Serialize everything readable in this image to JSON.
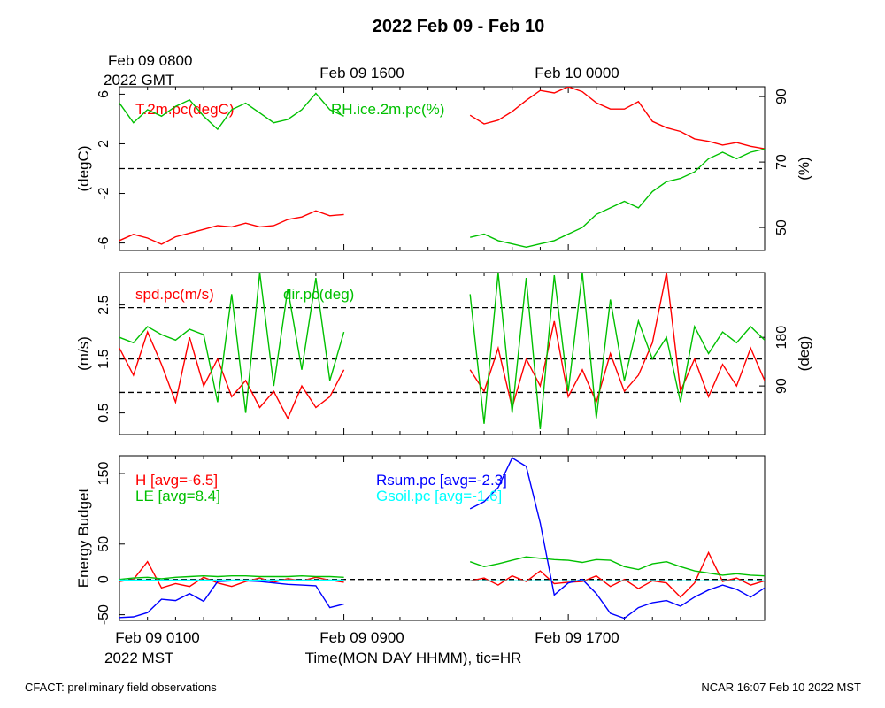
{
  "header": {
    "title": "2022 Feb 09 - Feb 10",
    "gmt_date": "Feb 09 0800",
    "gmt_label": "2022 GMT",
    "gmt_ticks": [
      "Feb 09 1600",
      "Feb 10 0000"
    ],
    "mst_ticks": [
      "Feb 09 0100",
      "Feb 09 0900",
      "Feb 09 1700"
    ],
    "mst_label": "2022 MST",
    "xlabel": "Time(MON DAY HHMM), tic=HR"
  },
  "footer": {
    "left": "CFACT: preliminary field observations",
    "right": "NCAR 16:07 Feb 10 2022 MST"
  },
  "colors": {
    "red": "#ff0000",
    "green": "#00c000",
    "blue": "#0000ff",
    "cyan": "#00ffff"
  },
  "chart_data": [
    {
      "type": "line",
      "x_unit": "hours since Feb 09 0000 MST",
      "xlim": [
        1,
        24
      ],
      "left_axis": {
        "label": "(degC)",
        "ticks": [
          "-6",
          "-2",
          "2",
          "6"
        ],
        "ylim": [
          -6.6,
          6.6
        ]
      },
      "right_axis": {
        "label": "(%)",
        "ticks": [
          "50",
          "70",
          "90"
        ],
        "ylim": [
          43,
          93
        ]
      },
      "reference_lines": [
        0
      ],
      "series": [
        {
          "name": "T.2m.pc(degC)",
          "axis": "left",
          "color": "red",
          "segments": [
            {
              "x": [
                1.0,
                1.5,
                2.0,
                2.5,
                3.0,
                3.5,
                4.0,
                4.5,
                5.0,
                5.5,
                6.0,
                6.5,
                7.0,
                7.5,
                8.0,
                8.5,
                9.0
              ],
              "y": [
                -5.8,
                -5.3,
                -5.6,
                -6.1,
                -5.5,
                -5.2,
                -4.9,
                -4.6,
                -4.7,
                -4.4,
                -4.7,
                -4.6,
                -4.1,
                -3.9,
                -3.4,
                -3.8,
                -3.7
              ]
            },
            {
              "x": [
                13.5,
                14.0,
                14.5,
                15.0,
                15.5,
                16.0,
                16.5,
                17.0,
                17.5,
                18.0,
                18.5,
                19.0,
                19.5,
                20.0,
                20.5,
                21.0,
                21.5,
                22.0,
                22.5,
                23.0,
                23.5,
                24.0
              ],
              "y": [
                4.3,
                3.6,
                3.9,
                4.6,
                5.5,
                6.3,
                6.1,
                6.6,
                6.2,
                5.3,
                4.8,
                4.8,
                5.4,
                3.8,
                3.3,
                3.0,
                2.4,
                2.2,
                1.9,
                2.1,
                1.8,
                1.6
              ]
            }
          ]
        },
        {
          "name": "RH.ice.2m.pc(%)",
          "axis": "right",
          "color": "green",
          "segments": [
            {
              "x": [
                1.0,
                1.5,
                2.0,
                2.5,
                3.0,
                3.5,
                4.0,
                4.5,
                5.0,
                5.5,
                6.0,
                6.5,
                7.0,
                7.5,
                8.0,
                8.5,
                9.0
              ],
              "y": [
                88,
                82,
                86,
                84,
                87,
                89,
                84,
                80,
                86,
                88,
                85,
                82,
                83,
                86,
                91,
                86,
                84
              ]
            },
            {
              "x": [
                13.5,
                14.0,
                14.5,
                15.0,
                15.5,
                16.0,
                16.5,
                17.0,
                17.5,
                18.0,
                18.5,
                19.0,
                19.5,
                20.0,
                20.5,
                21.0,
                21.5,
                22.0,
                22.5,
                23.0,
                23.5,
                24.0
              ],
              "y": [
                47,
                48,
                46,
                45,
                44,
                45,
                46,
                48,
                50,
                54,
                56,
                58,
                56,
                61,
                64,
                65,
                67,
                71,
                73,
                71,
                73,
                74
              ]
            }
          ]
        }
      ]
    },
    {
      "type": "line",
      "x_unit": "hours since Feb 09 0000 MST",
      "xlim": [
        1,
        24
      ],
      "left_axis": {
        "label": "(m/s)",
        "ticks": [
          "0.5",
          "1.5",
          "2.5"
        ],
        "ylim": [
          0.1,
          3.1
        ]
      },
      "right_axis": {
        "label": "(deg)",
        "ticks": [
          "90",
          "180"
        ],
        "ylim": [
          0,
          300
        ]
      },
      "reference_lines": [
        0.88,
        1.5,
        2.45
      ],
      "series": [
        {
          "name": "spd.pc(m/s)",
          "axis": "left",
          "color": "red",
          "segments": [
            {
              "x": [
                1.0,
                1.5,
                2.0,
                2.5,
                3.0,
                3.5,
                4.0,
                4.5,
                5.0,
                5.5,
                6.0,
                6.5,
                7.0,
                7.5,
                8.0,
                8.5,
                9.0
              ],
              "y": [
                1.7,
                1.2,
                2.0,
                1.4,
                0.7,
                1.9,
                1.0,
                1.5,
                0.8,
                1.1,
                0.6,
                0.9,
                0.4,
                1.0,
                0.6,
                0.8,
                1.3
              ]
            },
            {
              "x": [
                13.5,
                14.0,
                14.5,
                15.0,
                15.5,
                16.0,
                16.5,
                17.0,
                17.5,
                18.0,
                18.5,
                19.0,
                19.5,
                20.0,
                20.5,
                21.0,
                21.5,
                22.0,
                22.5,
                23.0,
                23.5,
                24.0
              ],
              "y": [
                1.3,
                0.9,
                1.7,
                0.6,
                1.5,
                1.0,
                2.2,
                0.8,
                1.3,
                0.7,
                1.6,
                0.9,
                1.2,
                1.8,
                3.1,
                0.9,
                1.5,
                0.8,
                1.4,
                1.0,
                1.7,
                1.1
              ]
            }
          ]
        },
        {
          "name": "dir.pc(deg)",
          "axis": "right",
          "color": "green",
          "segments": [
            {
              "x": [
                1.0,
                1.5,
                2.0,
                2.5,
                3.0,
                3.5,
                4.0,
                4.5,
                5.0,
                5.5,
                6.0,
                6.5,
                7.0,
                7.5,
                8.0,
                8.5,
                9.0
              ],
              "y": [
                180,
                170,
                200,
                185,
                175,
                195,
                185,
                60,
                260,
                40,
                300,
                90,
                270,
                120,
                290,
                100,
                190
              ]
            },
            {
              "x": [
                13.5,
                14.0,
                14.5,
                15.0,
                15.5,
                16.0,
                16.5,
                17.0,
                17.5,
                18.0,
                18.5,
                19.0,
                19.5,
                20.0,
                20.5,
                21.0,
                21.5,
                22.0,
                22.5,
                23.0,
                23.5,
                24.0
              ],
              "y": [
                260,
                20,
                300,
                40,
                290,
                10,
                295,
                80,
                300,
                30,
                250,
                100,
                210,
                140,
                180,
                60,
                200,
                150,
                190,
                170,
                200,
                175
              ]
            }
          ]
        }
      ]
    },
    {
      "type": "line",
      "x_unit": "hours since Feb 09 0000 MST",
      "xlim": [
        1,
        24
      ],
      "left_axis": {
        "label": "Energy Budget",
        "ticks": [
          "-50",
          "0",
          "50",
          "150"
        ],
        "ylim": [
          -58,
          175
        ]
      },
      "reference_lines": [
        0
      ],
      "series": [
        {
          "name": "H [avg=-6.5]",
          "color": "red",
          "segments": [
            {
              "x": [
                1.0,
                1.5,
                2.0,
                2.5,
                3.0,
                3.5,
                4.0,
                4.5,
                5.0,
                5.5,
                6.0,
                6.5,
                7.0,
                7.5,
                8.0,
                8.5,
                9.0
              ],
              "y": [
                -3,
                0,
                25,
                -12,
                -6,
                -10,
                3,
                -5,
                -10,
                -3,
                2,
                -4,
                1,
                -2,
                3,
                -1,
                -4
              ]
            },
            {
              "x": [
                13.5,
                14.0,
                14.5,
                15.0,
                15.5,
                16.0,
                16.5,
                17.0,
                17.5,
                18.0,
                18.5,
                19.0,
                19.5,
                20.0,
                20.5,
                21.0,
                21.5,
                22.0,
                22.5,
                23.0,
                23.5,
                24.0
              ],
              "y": [
                -2,
                2,
                -8,
                5,
                -3,
                12,
                -6,
                -4,
                -3,
                5,
                -10,
                0,
                -13,
                -2,
                -5,
                -25,
                -5,
                38,
                -3,
                2,
                -8,
                -2
              ]
            }
          ]
        },
        {
          "name": "LE [avg=8.4]",
          "color": "green",
          "segments": [
            {
              "x": [
                1.0,
                1.5,
                2.0,
                2.5,
                3.0,
                3.5,
                4.0,
                4.5,
                5.0,
                5.5,
                6.0,
                6.5,
                7.0,
                7.5,
                8.0,
                8.5,
                9.0
              ],
              "y": [
                0,
                2,
                3,
                1,
                3,
                4,
                5,
                4,
                5,
                5,
                4,
                4,
                4,
                5,
                4,
                4,
                3
              ]
            },
            {
              "x": [
                13.5,
                14.0,
                14.5,
                15.0,
                15.5,
                16.0,
                16.5,
                17.0,
                17.5,
                18.0,
                18.5,
                19.0,
                19.5,
                20.0,
                20.5,
                21.0,
                21.5,
                22.0,
                22.5,
                23.0,
                23.5,
                24.0
              ],
              "y": [
                25,
                18,
                22,
                27,
                32,
                30,
                28,
                27,
                24,
                28,
                27,
                18,
                14,
                22,
                25,
                18,
                12,
                9,
                6,
                8,
                6,
                5
              ]
            }
          ]
        },
        {
          "name": "Rsum.pc [avg=-2.3]",
          "color": "blue",
          "segments": [
            {
              "x": [
                1.0,
                1.5,
                2.0,
                2.5,
                3.0,
                3.5,
                4.0,
                4.5,
                5.0,
                5.5,
                6.0,
                6.5,
                7.0,
                7.5,
                8.0,
                8.5,
                9.0
              ],
              "y": [
                -54,
                -53,
                -47,
                -28,
                -30,
                -20,
                -31,
                -3,
                -2,
                -2,
                -3,
                -5,
                -7,
                -8,
                -9,
                -40,
                -35
              ]
            },
            {
              "x": [
                13.5,
                14.0,
                14.5,
                15.0,
                15.5,
                16.0,
                16.5,
                17.0,
                17.5,
                18.0,
                18.5,
                19.0,
                19.5,
                20.0,
                20.5,
                21.0,
                21.5,
                22.0,
                22.5,
                23.0,
                23.5,
                24.0
              ],
              "y": [
                100,
                110,
                130,
                172,
                160,
                80,
                -22,
                -5,
                0,
                -20,
                -48,
                -55,
                -40,
                -33,
                -30,
                -38,
                -25,
                -15,
                -8,
                -14,
                -25,
                -12
              ]
            }
          ]
        },
        {
          "name": "Gsoil.pc [avg=-1.6]",
          "color": "cyan",
          "segments": [
            {
              "x": [
                1.0,
                3.0,
                5.0,
                7.0,
                9.0
              ],
              "y": [
                -1,
                -1,
                -1,
                -1,
                -1
              ]
            },
            {
              "x": [
                13.5,
                16.0,
                18.0,
                20.0,
                22.0,
                24.0
              ],
              "y": [
                -2,
                -2,
                -2,
                -2,
                -2,
                -2
              ]
            }
          ]
        }
      ]
    }
  ]
}
